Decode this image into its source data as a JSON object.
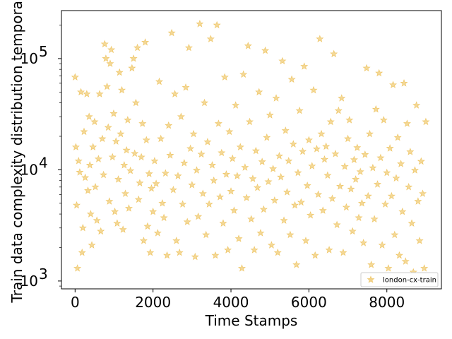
{
  "chart_data": {
    "type": "scatter",
    "xlabel": "Time Stamps",
    "ylabel": "Train data complexity distribution temporal",
    "y_scale": "log",
    "xlim": [
      -350,
      9400
    ],
    "ylim": [
      850,
      270000
    ],
    "x_ticks": [
      0,
      2000,
      4000,
      6000,
      8000
    ],
    "x_tick_labels": [
      "0",
      "2000",
      "4000",
      "6000",
      "8000"
    ],
    "y_ticks": [
      1000,
      10000,
      100000
    ],
    "y_tick_labels": [
      "10",
      "10",
      "10"
    ],
    "y_tick_exponents": [
      "3",
      "4",
      "5"
    ],
    "grid": false,
    "legend_position": "lower-right",
    "marker": "star",
    "color": "#e6a817",
    "series": [
      {
        "name": "london-cx-train",
        "points": [
          [
            0,
            68000
          ],
          [
            20,
            16000
          ],
          [
            40,
            4800
          ],
          [
            60,
            1300
          ],
          [
            90,
            12000
          ],
          [
            120,
            9500
          ],
          [
            150,
            50000
          ],
          [
            180,
            1800
          ],
          [
            200,
            3000
          ],
          [
            230,
            22000
          ],
          [
            260,
            8500
          ],
          [
            300,
            48000
          ],
          [
            330,
            6500
          ],
          [
            360,
            30000
          ],
          [
            380,
            11000
          ],
          [
            400,
            4000
          ],
          [
            430,
            2100
          ],
          [
            460,
            16000
          ],
          [
            500,
            27000
          ],
          [
            520,
            7000
          ],
          [
            560,
            3500
          ],
          [
            600,
            12500
          ],
          [
            630,
            48000
          ],
          [
            660,
            2800
          ],
          [
            700,
            19000
          ],
          [
            730,
            9000
          ],
          [
            760,
            135000
          ],
          [
            790,
            100000
          ],
          [
            820,
            56000
          ],
          [
            850,
            24000
          ],
          [
            880,
            5200
          ],
          [
            900,
            90000
          ],
          [
            930,
            120000
          ],
          [
            960,
            13000
          ],
          [
            990,
            32000
          ],
          [
            1020,
            4200
          ],
          [
            1050,
            18000
          ],
          [
            1080,
            3300
          ],
          [
            1110,
            8200
          ],
          [
            1140,
            75000
          ],
          [
            1170,
            21000
          ],
          [
            1200,
            52000
          ],
          [
            1230,
            2900
          ],
          [
            1260,
            11000
          ],
          [
            1290,
            6100
          ],
          [
            1320,
            15000
          ],
          [
            1350,
            28000
          ],
          [
            1380,
            4500
          ],
          [
            1420,
            9800
          ],
          [
            1460,
            82000
          ],
          [
            1500,
            100000
          ],
          [
            1530,
            14000
          ],
          [
            1560,
            40000
          ],
          [
            1600,
            125000
          ],
          [
            1630,
            5400
          ],
          [
            1660,
            7600
          ],
          [
            1700,
            13000
          ],
          [
            1730,
            26000
          ],
          [
            1760,
            2300
          ],
          [
            1800,
            140000
          ],
          [
            1830,
            18500
          ],
          [
            1860,
            3100
          ],
          [
            1900,
            9200
          ],
          [
            1930,
            1800
          ],
          [
            1960,
            6800
          ],
          [
            2000,
            4200
          ],
          [
            2040,
            12000
          ],
          [
            2080,
            7500
          ],
          [
            2120,
            2700
          ],
          [
            2160,
            62000
          ],
          [
            2200,
            19000
          ],
          [
            2240,
            5000
          ],
          [
            2280,
            3700
          ],
          [
            2320,
            9300
          ],
          [
            2360,
            1700
          ],
          [
            2400,
            25000
          ],
          [
            2440,
            13500
          ],
          [
            2480,
            170000
          ],
          [
            2520,
            6600
          ],
          [
            2560,
            48000
          ],
          [
            2600,
            2300
          ],
          [
            2640,
            8800
          ],
          [
            2680,
            1800
          ],
          [
            2720,
            30000
          ],
          [
            2760,
            4900
          ],
          [
            2800,
            11500
          ],
          [
            2840,
            55000
          ],
          [
            2880,
            3400
          ],
          [
            2920,
            125000
          ],
          [
            2960,
            15500
          ],
          [
            3000,
            7300
          ],
          [
            3040,
            21000
          ],
          [
            3080,
            1650
          ],
          [
            3120,
            9900
          ],
          [
            3160,
            3800
          ],
          [
            3200,
            205000
          ],
          [
            3240,
            13800
          ],
          [
            3280,
            6100
          ],
          [
            3320,
            40000
          ],
          [
            3360,
            2600
          ],
          [
            3400,
            17800
          ],
          [
            3440,
            4900
          ],
          [
            3480,
            150000
          ],
          [
            3520,
            11000
          ],
          [
            3560,
            8000
          ],
          [
            3600,
            1700
          ],
          [
            3640,
            200000
          ],
          [
            3680,
            26000
          ],
          [
            3720,
            5700
          ],
          [
            3760,
            14200
          ],
          [
            3800,
            3300
          ],
          [
            3840,
            68000
          ],
          [
            3880,
            9100
          ],
          [
            3920,
            1900
          ],
          [
            3960,
            22000
          ],
          [
            4000,
            6400
          ],
          [
            4040,
            12600
          ],
          [
            4080,
            4300
          ],
          [
            4120,
            38000
          ],
          [
            4160,
            8800
          ],
          [
            4200,
            2400
          ],
          [
            4240,
            16000
          ],
          [
            4280,
            1300
          ],
          [
            4320,
            72000
          ],
          [
            4360,
            10500
          ],
          [
            4400,
            5600
          ],
          [
            4440,
            130000
          ],
          [
            4480,
            27000
          ],
          [
            4520,
            3600
          ],
          [
            4560,
            8300
          ],
          [
            4600,
            1900
          ],
          [
            4640,
            14800
          ],
          [
            4680,
            6900
          ],
          [
            4720,
            50000
          ],
          [
            4760,
            2700
          ],
          [
            4800,
            11800
          ],
          [
            4840,
            4400
          ],
          [
            4880,
            118000
          ],
          [
            4920,
            19500
          ],
          [
            4960,
            7800
          ],
          [
            5000,
            31000
          ],
          [
            5040,
            2100
          ],
          [
            5080,
            10200
          ],
          [
            5120,
            5300
          ],
          [
            5160,
            44000
          ],
          [
            5200,
            1800
          ],
          [
            5240,
            13300
          ],
          [
            5280,
            8600
          ],
          [
            5320,
            95000
          ],
          [
            5360,
            3500
          ],
          [
            5400,
            22500
          ],
          [
            5440,
            6300
          ],
          [
            5480,
            12000
          ],
          [
            5520,
            2600
          ],
          [
            5560,
            65000
          ],
          [
            5600,
            17000
          ],
          [
            5640,
            4800
          ],
          [
            5680,
            1400
          ],
          [
            5720,
            9400
          ],
          [
            5760,
            34000
          ],
          [
            5800,
            5100
          ],
          [
            5840,
            14600
          ],
          [
            5880,
            85000
          ],
          [
            5920,
            2300
          ],
          [
            5960,
            7200
          ],
          [
            6000,
            18500
          ],
          [
            6040,
            3900
          ],
          [
            6080,
            10800
          ],
          [
            6120,
            52000
          ],
          [
            6160,
            1700
          ],
          [
            6200,
            15400
          ],
          [
            6240,
            6000
          ],
          [
            6280,
            150000
          ],
          [
            6320,
            21000
          ],
          [
            6360,
            4300
          ],
          [
            6400,
            12400
          ],
          [
            6440,
            16200
          ],
          [
            6480,
            8900
          ],
          [
            6520,
            1900
          ],
          [
            6560,
            27000
          ],
          [
            6600,
            5500
          ],
          [
            6640,
            110000
          ],
          [
            6680,
            13900
          ],
          [
            6720,
            3200
          ],
          [
            6760,
            34000
          ],
          [
            6800,
            7100
          ],
          [
            6840,
            44000
          ],
          [
            6880,
            1800
          ],
          [
            6920,
            10700
          ],
          [
            6960,
            4600
          ],
          [
            7000,
            19000
          ],
          [
            7040,
            28000
          ],
          [
            7080,
            6700
          ],
          [
            7120,
            2800
          ],
          [
            7160,
            12300
          ],
          [
            7200,
            8200
          ],
          [
            7240,
            15800
          ],
          [
            7280,
            3700
          ],
          [
            7320,
            9600
          ],
          [
            7360,
            5000
          ],
          [
            7400,
            2200
          ],
          [
            7440,
            13700
          ],
          [
            7480,
            82000
          ],
          [
            7520,
            5800
          ],
          [
            7560,
            21000
          ],
          [
            7600,
            1400
          ],
          [
            7640,
            10400
          ],
          [
            7680,
            3600
          ],
          [
            7720,
            35000
          ],
          [
            7760,
            7400
          ],
          [
            7800,
            74000
          ],
          [
            7840,
            12800
          ],
          [
            7880,
            2100
          ],
          [
            7920,
            28000
          ],
          [
            7960,
            4900
          ],
          [
            8000,
            9400
          ],
          [
            8040,
            1300
          ],
          [
            8080,
            15600
          ],
          [
            8120,
            5800
          ],
          [
            8160,
            58000
          ],
          [
            8200,
            2600
          ],
          [
            8240,
            8400
          ],
          [
            8280,
            19500
          ],
          [
            8320,
            1700
          ],
          [
            8360,
            11300
          ],
          [
            8400,
            4200
          ],
          [
            8440,
            60000
          ],
          [
            8480,
            1500
          ],
          [
            8520,
            26000
          ],
          [
            8560,
            7000
          ],
          [
            8600,
            14500
          ],
          [
            8640,
            3300
          ],
          [
            8680,
            1200
          ],
          [
            8720,
            9900
          ],
          [
            8760,
            38000
          ],
          [
            8800,
            5200
          ],
          [
            8840,
            2300
          ],
          [
            8880,
            11900
          ],
          [
            8920,
            6100
          ],
          [
            8960,
            1300
          ],
          [
            9000,
            27000
          ]
        ]
      }
    ]
  }
}
